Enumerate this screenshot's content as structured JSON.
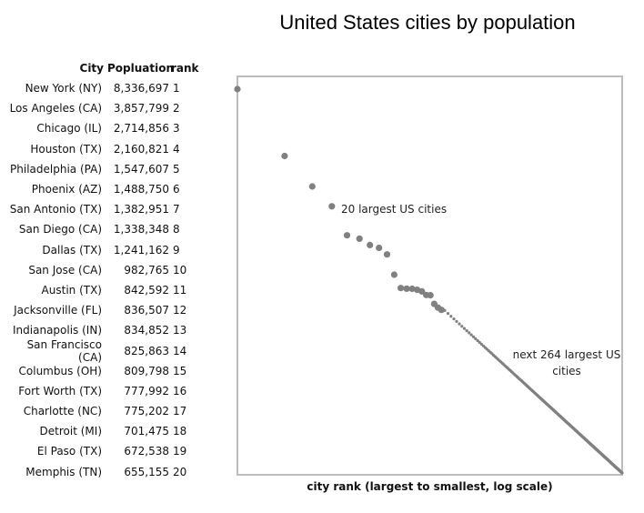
{
  "title": "United States cities by population",
  "table": {
    "headers": {
      "city": "City",
      "population": "Popluation",
      "rank": "rank"
    },
    "rows": [
      {
        "city": "New York (NY)",
        "population": "8,336,697",
        "rank": "1"
      },
      {
        "city": "Los Angeles (CA)",
        "population": "3,857,799",
        "rank": "2"
      },
      {
        "city": "Chicago (IL)",
        "population": "2,714,856",
        "rank": "3"
      },
      {
        "city": "Houston (TX)",
        "population": "2,160,821",
        "rank": "4"
      },
      {
        "city": "Philadelphia (PA)",
        "population": "1,547,607",
        "rank": "5"
      },
      {
        "city": "Phoenix (AZ)",
        "population": "1,488,750",
        "rank": "6"
      },
      {
        "city": "San Antonio (TX)",
        "population": "1,382,951",
        "rank": "7"
      },
      {
        "city": "San Diego (CA)",
        "population": "1,338,348",
        "rank": "8"
      },
      {
        "city": "Dallas (TX)",
        "population": "1,241,162",
        "rank": "9"
      },
      {
        "city": "San Jose (CA)",
        "population": "982,765",
        "rank": "10"
      },
      {
        "city": "Austin (TX)",
        "population": "842,592",
        "rank": "11"
      },
      {
        "city": "Jacksonville (FL)",
        "population": "836,507",
        "rank": "12"
      },
      {
        "city": "Indianapolis (IN)",
        "population": "834,852",
        "rank": "13"
      },
      {
        "city": "San Francisco (CA)",
        "population": "825,863",
        "rank": "14"
      },
      {
        "city": "Columbus (OH)",
        "population": "809,798",
        "rank": "15"
      },
      {
        "city": "Fort Worth (TX)",
        "population": "777,992",
        "rank": "16"
      },
      {
        "city": "Charlotte (NC)",
        "population": "775,202",
        "rank": "17"
      },
      {
        "city": "Detroit (MI)",
        "population": "701,475",
        "rank": "18"
      },
      {
        "city": "El Paso (TX)",
        "population": "672,538",
        "rank": "19"
      },
      {
        "city": "Memphis (TN)",
        "population": "655,155",
        "rank": "20"
      }
    ]
  },
  "chart_data": {
    "type": "scatter",
    "title": "United States cities by population",
    "xlabel": "city rank (largest to smallest, log scale)",
    "ylabel": "",
    "x_scale": "log",
    "y_scale": "log",
    "xlim": [
      1,
      284
    ],
    "ylim": [
      100000,
      8336697
    ],
    "grid": false,
    "tick_labels": "none",
    "marker_color": "#808080",
    "frame_color": "#bdbdbd",
    "annotations": [
      "20 largest US cities",
      "next 264 largest US cities"
    ],
    "series": [
      {
        "x": [
          1,
          2,
          3,
          4,
          5,
          6,
          7,
          8,
          9,
          10,
          11,
          12,
          13,
          14,
          15,
          16,
          17,
          18,
          19,
          20
        ],
        "y": [
          8336697,
          3857799,
          2714856,
          2160821,
          1547607,
          1488750,
          1382951,
          1338348,
          1241162,
          982765,
          842592,
          836507,
          834852,
          825863,
          809798,
          777992,
          775202,
          701475,
          672538,
          655155
        ],
        "marker": "large"
      },
      {
        "x_from": 21,
        "x_to": 284,
        "y_from": 650000,
        "y_to": 100000,
        "marker": "small"
      }
    ]
  }
}
